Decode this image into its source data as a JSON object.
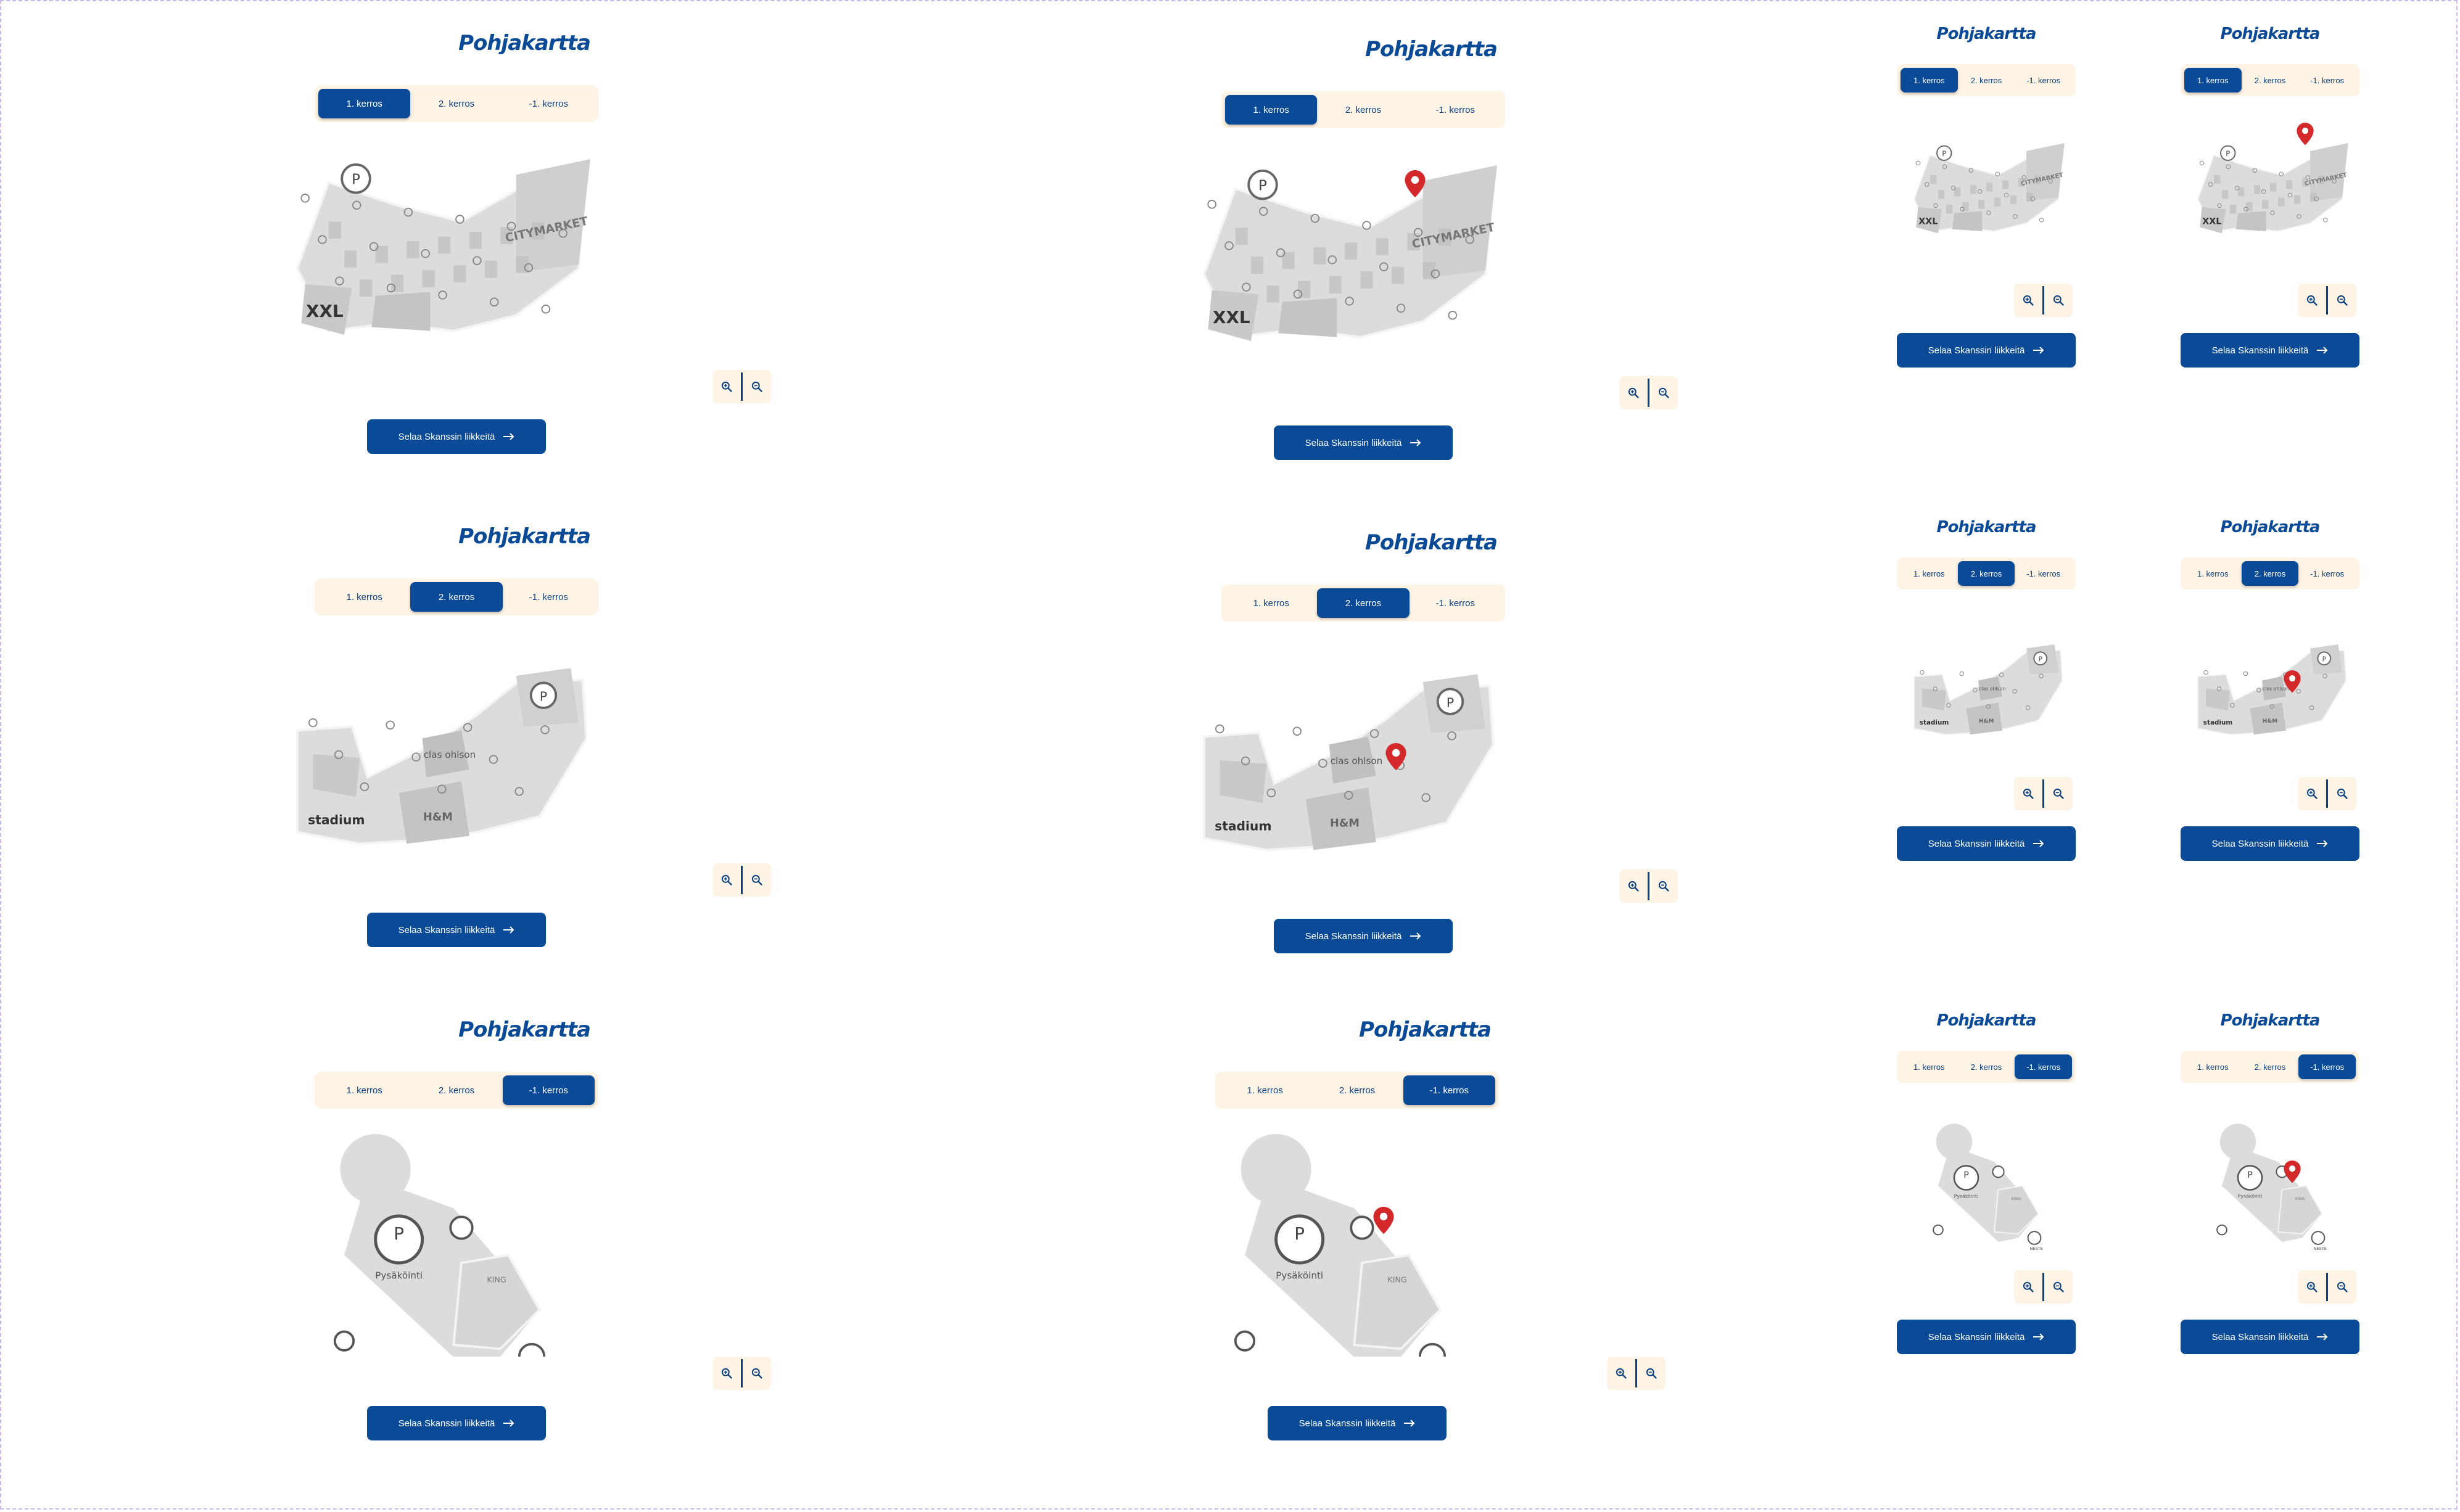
{
  "title": "Pohjakartta",
  "tabs": [
    "1. kerros",
    "2. kerros",
    "-1. kerros"
  ],
  "cta_label": "Selaa Skanssin liikkeitä",
  "icons": {
    "zoom_in": "zoom-in-icon",
    "zoom_out": "zoom-out-icon",
    "arrow": "arrow-right-icon",
    "pin": "location-pin-icon",
    "parking": "parking-icon"
  },
  "map_labels": {
    "floor1": [
      "CITYMARKET",
      "XXL"
    ],
    "floor2": [
      "clas ohlson",
      "stadium",
      "H&M"
    ],
    "floor_minus1": [
      "Pysäköinti",
      "NESTE",
      "KING"
    ]
  },
  "colors": {
    "brand_blue": "#0a4a96",
    "tab_bg": "#fdf4e6",
    "map_grey": "#dcdcdc",
    "pin_red": "#d3292a"
  }
}
